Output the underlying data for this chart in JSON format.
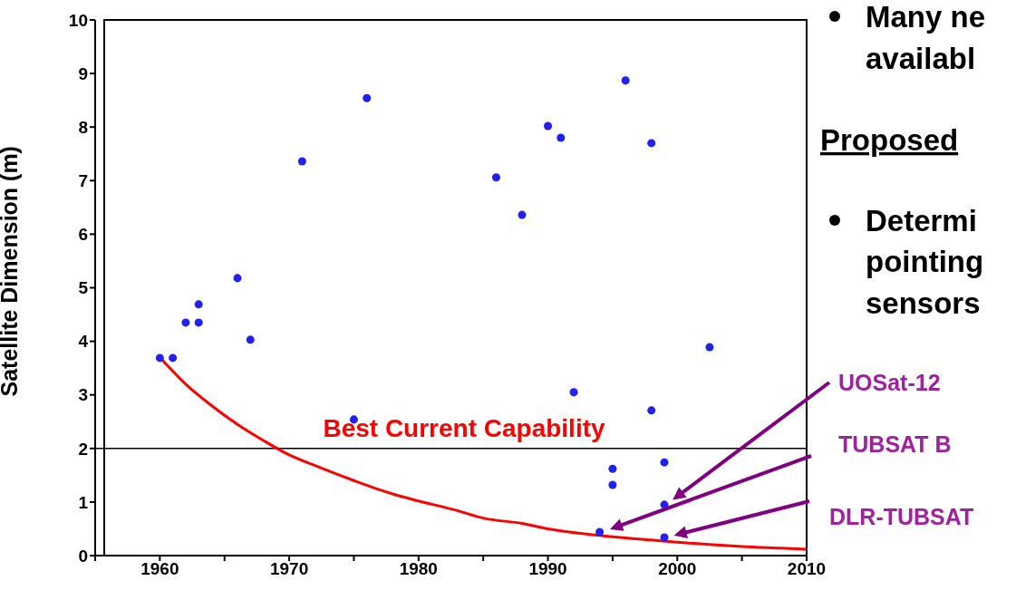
{
  "chart_data": {
    "type": "scatter",
    "ylabel": "Satellite Dimension (m)",
    "xlim": [
      1955,
      2010
    ],
    "ylim": [
      0,
      10
    ],
    "xticks": [
      {
        "value": 1955,
        "label": null
      },
      1960,
      {
        "value": 1965,
        "label": null
      },
      1970,
      {
        "value": 1975,
        "label": null
      },
      1980,
      {
        "value": 1985,
        "label": null
      },
      1990,
      {
        "value": 1995,
        "label": null
      },
      2000,
      {
        "value": 2005,
        "label": null
      },
      2010
    ],
    "yticks": [
      0,
      1,
      2,
      3,
      4,
      5,
      6,
      7,
      8,
      9,
      10
    ],
    "marker": "circle",
    "series": [
      {
        "color": "#2020f0",
        "x": [
          1960,
          1961,
          1962,
          1963,
          1963,
          1966,
          1967,
          1971,
          1975,
          1976,
          1986,
          1988,
          1990,
          1991,
          1992,
          1994,
          1995,
          1995,
          1996,
          1998,
          1998,
          1999,
          1999,
          1999,
          2002.5
        ],
        "values": [
          3.69,
          3.69,
          4.35,
          4.35,
          4.69,
          5.18,
          4.03,
          7.36,
          2.54,
          8.54,
          7.06,
          6.36,
          8.02,
          7.8,
          3.05,
          0.44,
          1.62,
          1.32,
          8.87,
          7.7,
          2.71,
          1.74,
          0.95,
          0.34,
          3.89
        ]
      },
      {
        "type": "line",
        "name": "Best Current Capability",
        "color": "#ff0000",
        "line_style": "solid",
        "marker": "none",
        "x": [
          1960,
          1962,
          1964,
          1966,
          1968,
          1970,
          1972,
          1975,
          1978,
          1980,
          1983,
          1985,
          1988,
          1990,
          1993,
          1995,
          1998,
          2000,
          2003,
          2005,
          2008,
          2010
        ],
        "values": [
          3.7,
          3.2,
          2.8,
          2.45,
          2.15,
          1.88,
          1.68,
          1.4,
          1.15,
          1.02,
          0.84,
          0.7,
          0.6,
          0.5,
          0.4,
          0.35,
          0.29,
          0.25,
          0.2,
          0.17,
          0.14,
          0.12
        ]
      }
    ],
    "ref_lines": [
      {
        "axis": "y",
        "value": 2,
        "color": "#000000"
      }
    ],
    "annotations": [
      "UOSat-12",
      "TUBSAT B",
      "DLR-TUBSAT",
      "Many ne",
      "availabl",
      "Proposed",
      "Determi",
      "pointing",
      "sensors"
    ]
  }
}
